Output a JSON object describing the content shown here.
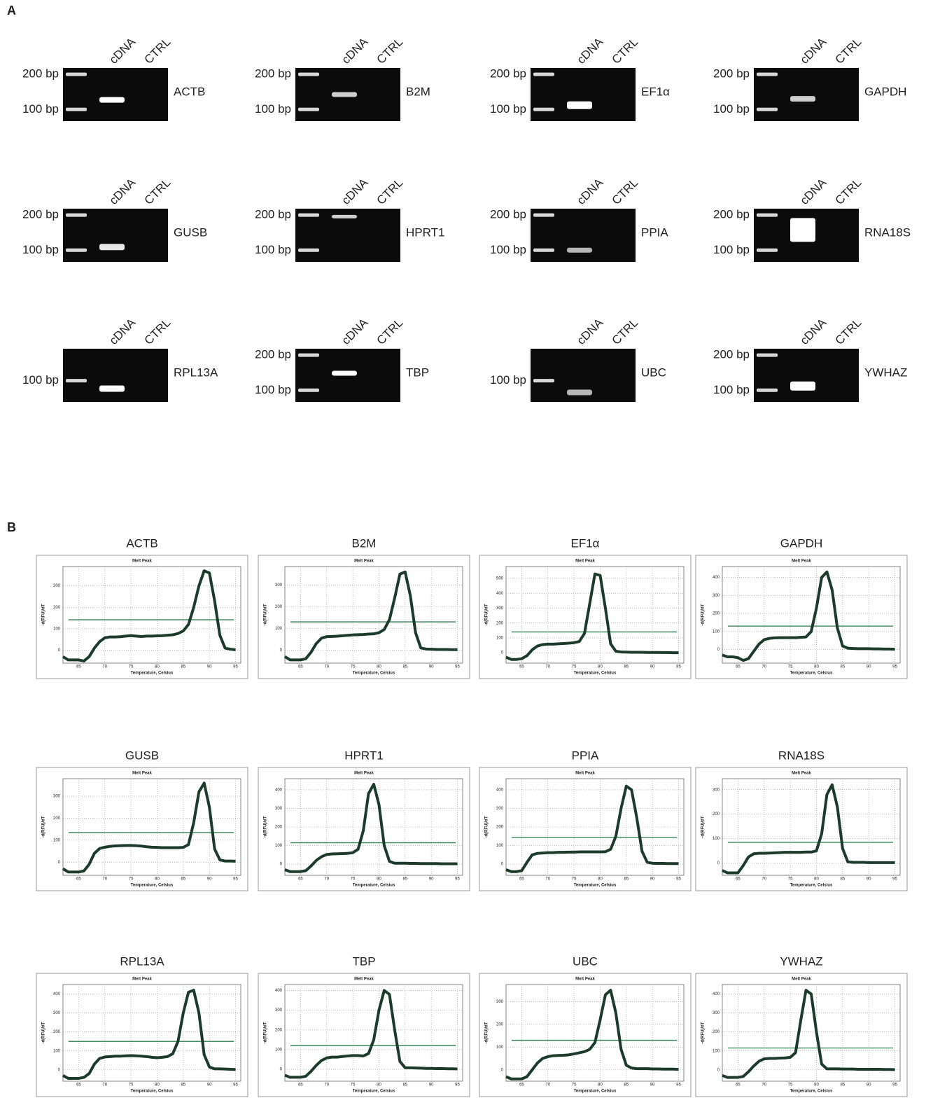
{
  "panel_labels": [
    "A",
    "B"
  ],
  "gels": [
    {
      "gene": "ACTB",
      "lanes": [
        "cDNA",
        "CTRL"
      ],
      "ladder": [
        "200 bp",
        "100 bp"
      ]
    },
    {
      "gene": "B2M",
      "lanes": [
        "cDNA",
        "CTRL"
      ],
      "ladder": [
        "200 bp",
        "100 bp"
      ]
    },
    {
      "gene": "EF1α",
      "lanes": [
        "cDNA",
        "CTRL"
      ],
      "ladder": [
        "200 bp",
        "100 bp"
      ]
    },
    {
      "gene": "GAPDH",
      "lanes": [
        "cDNA",
        "CTRL"
      ],
      "ladder": [
        "200 bp",
        "100 bp"
      ]
    },
    {
      "gene": "GUSB",
      "lanes": [
        "cDNA",
        "CTRL"
      ],
      "ladder": [
        "200 bp",
        "100 bp"
      ]
    },
    {
      "gene": "HPRT1",
      "lanes": [
        "cDNA",
        "CTRL"
      ],
      "ladder": [
        "200 bp",
        "100 bp"
      ]
    },
    {
      "gene": "PPIA",
      "lanes": [
        "cDNA",
        "CTRL"
      ],
      "ladder": [
        "200 bp",
        "100 bp"
      ]
    },
    {
      "gene": "RNA18S",
      "lanes": [
        "cDNA",
        "CTRL"
      ],
      "ladder": [
        "200 bp",
        "100 bp"
      ]
    },
    {
      "gene": "RPL13A",
      "lanes": [
        "cDNA",
        "CTRL"
      ],
      "ladder": [
        "100 bp"
      ]
    },
    {
      "gene": "TBP",
      "lanes": [
        "cDNA",
        "CTRL"
      ],
      "ladder": [
        "200 bp",
        "100 bp"
      ]
    },
    {
      "gene": "UBC",
      "lanes": [
        "cDNA",
        "CTRL"
      ],
      "ladder": [
        "100 bp"
      ]
    },
    {
      "gene": "YWHAZ",
      "lanes": [
        "cDNA",
        "CTRL"
      ],
      "ladder": [
        "200 bp",
        "100 bp"
      ]
    }
  ],
  "chart_data": [
    {
      "type": "line",
      "title": "ACTB",
      "subtitle": "Melt Peak",
      "x_label": "Temperature, Celsius",
      "y_label": "-d(RFU)/dT",
      "color": "#1c3b2a",
      "threshold": 142,
      "threshold_color": "#2e7d4f",
      "grid": true,
      "x": [
        62,
        63,
        64,
        65,
        66,
        67,
        68,
        69,
        70,
        71,
        72,
        73,
        74,
        75,
        76,
        77,
        78,
        79,
        80,
        81,
        82,
        83,
        84,
        85,
        86,
        87,
        88,
        89,
        90,
        91,
        92,
        93,
        94,
        95
      ],
      "values": [
        -30,
        -45,
        -45,
        -45,
        -50,
        -30,
        10,
        40,
        58,
        62,
        62,
        63,
        66,
        68,
        66,
        64,
        66,
        66,
        67,
        68,
        70,
        72,
        78,
        90,
        120,
        200,
        300,
        370,
        360,
        230,
        70,
        10,
        5,
        2
      ],
      "xlim": [
        62,
        96
      ],
      "xticks": [
        65,
        70,
        75,
        80,
        85,
        90,
        95
      ],
      "ylim": [
        -60,
        390
      ],
      "yticks": [
        0,
        100,
        200,
        300
      ]
    },
    {
      "type": "line",
      "title": "B2M",
      "subtitle": "Melt Peak",
      "x_label": "Temperature, Celsius",
      "y_label": "-d(RFU)/dT",
      "color": "#1c3b2a",
      "threshold": 130,
      "threshold_color": "#2e7d4f",
      "grid": true,
      "x": [
        62,
        63,
        64,
        65,
        66,
        67,
        68,
        69,
        70,
        71,
        72,
        73,
        74,
        75,
        76,
        77,
        78,
        79,
        80,
        81,
        82,
        83,
        84,
        85,
        86,
        87,
        88,
        89,
        90,
        91,
        92,
        93,
        94,
        95
      ],
      "values": [
        -30,
        -45,
        -45,
        -45,
        -40,
        -10,
        30,
        55,
        62,
        63,
        64,
        66,
        68,
        70,
        71,
        72,
        74,
        75,
        80,
        95,
        140,
        240,
        350,
        360,
        250,
        80,
        10,
        5,
        4,
        3,
        3,
        3,
        2,
        2
      ],
      "xlim": [
        62,
        96
      ],
      "xticks": [
        65,
        70,
        75,
        80,
        85,
        90,
        95
      ],
      "ylim": [
        -60,
        385
      ],
      "yticks": [
        0,
        100,
        200,
        300
      ]
    },
    {
      "type": "line",
      "title": "EF1α",
      "subtitle": "Melt Peak",
      "x_label": "Temperature, Celsius",
      "y_label": "-d(RFU)/dT",
      "color": "#1c3b2a",
      "threshold": 140,
      "threshold_color": "#2e7d4f",
      "grid": true,
      "x": [
        62,
        63,
        64,
        65,
        66,
        67,
        68,
        69,
        70,
        71,
        72,
        73,
        74,
        75,
        76,
        77,
        78,
        79,
        80,
        81,
        82,
        83,
        84,
        85,
        86,
        87,
        88,
        89,
        90,
        91,
        92,
        93,
        94,
        95
      ],
      "values": [
        -30,
        -45,
        -45,
        -40,
        -20,
        20,
        45,
        55,
        58,
        58,
        60,
        62,
        64,
        68,
        75,
        130,
        330,
        530,
        520,
        300,
        60,
        10,
        5,
        4,
        3,
        3,
        3,
        2,
        2,
        2,
        1,
        1,
        0,
        0
      ],
      "xlim": [
        62,
        96
      ],
      "xticks": [
        65,
        70,
        75,
        80,
        85,
        90,
        95
      ],
      "ylim": [
        -70,
        580
      ],
      "yticks": [
        0,
        100,
        200,
        300,
        400,
        500
      ]
    },
    {
      "type": "line",
      "title": "GAPDH",
      "subtitle": "Melt Peak",
      "x_label": "Temperature, Celsius",
      "y_label": "-d(RFU)/dT",
      "color": "#1c3b2a",
      "threshold": 130,
      "threshold_color": "#2e7d4f",
      "grid": true,
      "x": [
        62,
        63,
        64,
        65,
        66,
        67,
        68,
        69,
        70,
        71,
        72,
        73,
        74,
        75,
        76,
        77,
        78,
        79,
        80,
        81,
        82,
        83,
        84,
        85,
        86,
        87,
        88,
        89,
        90,
        91,
        92,
        93,
        94,
        95
      ],
      "values": [
        -30,
        -40,
        -40,
        -45,
        -60,
        -50,
        -10,
        30,
        55,
        62,
        65,
        66,
        66,
        66,
        66,
        68,
        70,
        100,
        230,
        400,
        430,
        330,
        120,
        20,
        8,
        6,
        5,
        5,
        5,
        4,
        4,
        3,
        3,
        2
      ],
      "xlim": [
        62,
        96
      ],
      "xticks": [
        65,
        70,
        75,
        80,
        85,
        90,
        95
      ],
      "ylim": [
        -75,
        460
      ],
      "yticks": [
        0,
        100,
        200,
        300,
        400
      ]
    },
    {
      "type": "line",
      "title": "GUSB",
      "subtitle": "Melt Peak",
      "x_label": "Temperature, Celsius",
      "y_label": "-d(RFU)/dT",
      "color": "#1c3b2a",
      "threshold": 135,
      "threshold_color": "#2e7d4f",
      "grid": true,
      "x": [
        62,
        63,
        64,
        65,
        66,
        67,
        68,
        69,
        70,
        71,
        72,
        73,
        74,
        75,
        76,
        77,
        78,
        79,
        80,
        81,
        82,
        83,
        84,
        85,
        86,
        87,
        88,
        89,
        90,
        91,
        92,
        93,
        94,
        95
      ],
      "values": [
        -30,
        -45,
        -45,
        -45,
        -40,
        -10,
        40,
        62,
        68,
        72,
        74,
        75,
        76,
        76,
        75,
        73,
        70,
        68,
        67,
        66,
        66,
        66,
        66,
        67,
        80,
        180,
        320,
        360,
        250,
        60,
        10,
        5,
        5,
        4
      ],
      "xlim": [
        62,
        96
      ],
      "xticks": [
        65,
        70,
        75,
        80,
        85,
        90,
        95
      ],
      "ylim": [
        -60,
        380
      ],
      "yticks": [
        0,
        100,
        200,
        300
      ]
    },
    {
      "type": "line",
      "title": "HPRT1",
      "subtitle": "Melt Peak",
      "x_label": "Temperature, Celsius",
      "y_label": "-d(RFU)/dT",
      "color": "#1c3b2a",
      "threshold": 115,
      "threshold_color": "#2e7d4f",
      "grid": true,
      "x": [
        62,
        63,
        64,
        65,
        66,
        67,
        68,
        69,
        70,
        71,
        72,
        73,
        74,
        75,
        76,
        77,
        78,
        79,
        80,
        81,
        82,
        83,
        84,
        85,
        86,
        87,
        88,
        89,
        90,
        91,
        92,
        93,
        94,
        95
      ],
      "values": [
        -30,
        -40,
        -40,
        -40,
        -35,
        -10,
        20,
        40,
        52,
        55,
        56,
        57,
        58,
        62,
        80,
        180,
        380,
        430,
        320,
        100,
        15,
        5,
        5,
        5,
        4,
        4,
        3,
        3,
        3,
        3,
        2,
        2,
        2,
        2
      ],
      "xlim": [
        62,
        96
      ],
      "xticks": [
        65,
        70,
        75,
        80,
        85,
        90,
        95
      ],
      "ylim": [
        -60,
        460
      ],
      "yticks": [
        0,
        100,
        200,
        300,
        400
      ]
    },
    {
      "type": "line",
      "title": "PPIA",
      "subtitle": "Melt Peak",
      "x_label": "Temperature, Celsius",
      "y_label": "-d(RFU)/dT",
      "color": "#1c3b2a",
      "threshold": 145,
      "threshold_color": "#2e7d4f",
      "grid": true,
      "x": [
        62,
        63,
        64,
        65,
        66,
        67,
        68,
        69,
        70,
        71,
        72,
        73,
        74,
        75,
        76,
        77,
        78,
        79,
        80,
        81,
        82,
        83,
        84,
        85,
        86,
        87,
        88,
        89,
        90,
        91,
        92,
        93,
        94,
        95
      ],
      "values": [
        -30,
        -40,
        -40,
        -35,
        10,
        50,
        58,
        60,
        62,
        62,
        64,
        64,
        65,
        65,
        66,
        66,
        66,
        66,
        66,
        67,
        80,
        150,
        300,
        420,
        400,
        250,
        70,
        10,
        5,
        4,
        4,
        3,
        3,
        3
      ],
      "xlim": [
        62,
        96
      ],
      "xticks": [
        65,
        70,
        75,
        80,
        85,
        90,
        95
      ],
      "ylim": [
        -60,
        460
      ],
      "yticks": [
        0,
        100,
        200,
        300,
        400
      ]
    },
    {
      "type": "line",
      "title": "RNA18S",
      "subtitle": "Melt Peak",
      "x_label": "Temperature, Celsius",
      "y_label": "-d(RFU)/dT",
      "color": "#1c3b2a",
      "threshold": 85,
      "threshold_color": "#2e7d4f",
      "grid": true,
      "x": [
        62,
        63,
        64,
        65,
        66,
        67,
        68,
        69,
        70,
        71,
        72,
        73,
        74,
        75,
        76,
        77,
        78,
        79,
        80,
        81,
        82,
        83,
        84,
        85,
        86,
        87,
        88,
        89,
        90,
        91,
        92,
        93,
        94,
        95
      ],
      "values": [
        -30,
        -40,
        -40,
        -40,
        -10,
        25,
        38,
        40,
        40,
        41,
        42,
        43,
        44,
        44,
        44,
        44,
        45,
        45,
        50,
        120,
        280,
        320,
        230,
        60,
        5,
        3,
        3,
        3,
        2,
        2,
        2,
        2,
        2,
        2
      ],
      "xlim": [
        62,
        96
      ],
      "xticks": [
        65,
        70,
        75,
        80,
        85,
        90,
        95
      ],
      "ylim": [
        -50,
        345
      ],
      "yticks": [
        0,
        100,
        200,
        300
      ]
    },
    {
      "type": "line",
      "title": "RPL13A",
      "subtitle": "Melt Peak",
      "x_label": "Temperature, Celsius",
      "y_label": "-d(RFU)/dT",
      "color": "#1c3b2a",
      "threshold": 150,
      "threshold_color": "#2e7d4f",
      "grid": true,
      "x": [
        62,
        63,
        64,
        65,
        66,
        67,
        68,
        69,
        70,
        71,
        72,
        73,
        74,
        75,
        76,
        77,
        78,
        79,
        80,
        81,
        82,
        83,
        84,
        85,
        86,
        87,
        88,
        89,
        90,
        91,
        92,
        93,
        94,
        95
      ],
      "values": [
        -30,
        -45,
        -45,
        -45,
        -40,
        -20,
        30,
        60,
        68,
        70,
        72,
        72,
        74,
        75,
        74,
        72,
        70,
        66,
        64,
        66,
        70,
        85,
        150,
        300,
        410,
        420,
        300,
        80,
        15,
        5,
        5,
        4,
        3,
        2
      ],
      "xlim": [
        62,
        96
      ],
      "xticks": [
        65,
        70,
        75,
        80,
        85,
        90,
        95
      ],
      "ylim": [
        -60,
        450
      ],
      "yticks": [
        0,
        100,
        200,
        300,
        400
      ]
    },
    {
      "type": "line",
      "title": "TBP",
      "subtitle": "Melt Peak",
      "x_label": "Temperature, Celsius",
      "y_label": "-d(RFU)/dT",
      "color": "#1c3b2a",
      "threshold": 120,
      "threshold_color": "#2e7d4f",
      "grid": true,
      "x": [
        62,
        63,
        64,
        65,
        66,
        67,
        68,
        69,
        70,
        71,
        72,
        73,
        74,
        75,
        76,
        77,
        78,
        79,
        80,
        81,
        82,
        83,
        84,
        85,
        86,
        87,
        88,
        89,
        90,
        91,
        92,
        93,
        94,
        95
      ],
      "values": [
        -30,
        -40,
        -40,
        -40,
        -35,
        -10,
        20,
        45,
        58,
        62,
        62,
        65,
        68,
        70,
        70,
        68,
        80,
        150,
        300,
        400,
        380,
        200,
        40,
        8,
        8,
        7,
        6,
        5,
        5,
        4,
        4,
        3,
        3,
        2
      ],
      "xlim": [
        62,
        96
      ],
      "xticks": [
        65,
        70,
        75,
        80,
        85,
        90,
        95
      ],
      "ylim": [
        -60,
        430
      ],
      "yticks": [
        0,
        100,
        200,
        300,
        400
      ]
    },
    {
      "type": "line",
      "title": "UBC",
      "subtitle": "Melt Peak",
      "x_label": "Temperature, Celsius",
      "y_label": "-d(RFU)/dT",
      "color": "#1c3b2a",
      "threshold": 130,
      "threshold_color": "#2e7d4f",
      "grid": true,
      "x": [
        62,
        63,
        64,
        65,
        66,
        67,
        68,
        69,
        70,
        71,
        72,
        73,
        74,
        75,
        76,
        77,
        78,
        79,
        80,
        81,
        82,
        83,
        84,
        85,
        86,
        87,
        88,
        89,
        90,
        91,
        92,
        93,
        94,
        95
      ],
      "values": [
        -30,
        -40,
        -40,
        -40,
        -30,
        0,
        30,
        50,
        58,
        62,
        63,
        64,
        66,
        70,
        75,
        80,
        90,
        120,
        220,
        330,
        350,
        250,
        90,
        20,
        8,
        5,
        5,
        5,
        4,
        4,
        3,
        3,
        3,
        2
      ],
      "xlim": [
        62,
        96
      ],
      "xticks": [
        65,
        70,
        75,
        80,
        85,
        90,
        95
      ],
      "ylim": [
        -50,
        375
      ],
      "yticks": [
        0,
        100,
        200,
        300
      ]
    },
    {
      "type": "line",
      "title": "YWHAZ",
      "subtitle": "Melt Peak",
      "x_label": "Temperature, Celsius",
      "y_label": "-d(RFU)/dT",
      "color": "#1c3b2a",
      "threshold": 115,
      "threshold_color": "#2e7d4f",
      "grid": true,
      "x": [
        62,
        63,
        64,
        65,
        66,
        67,
        68,
        69,
        70,
        71,
        72,
        73,
        74,
        75,
        76,
        77,
        78,
        79,
        80,
        81,
        82,
        83,
        84,
        85,
        86,
        87,
        88,
        89,
        90,
        91,
        92,
        93,
        94,
        95
      ],
      "values": [
        -30,
        -40,
        -40,
        -40,
        -35,
        -10,
        20,
        45,
        58,
        60,
        60,
        62,
        63,
        66,
        90,
        260,
        420,
        400,
        200,
        30,
        5,
        5,
        5,
        4,
        4,
        4,
        3,
        3,
        3,
        3,
        3,
        2,
        2,
        1
      ],
      "xlim": [
        62,
        96
      ],
      "xticks": [
        65,
        70,
        75,
        80,
        85,
        90,
        95
      ],
      "ylim": [
        -60,
        450
      ],
      "yticks": [
        0,
        100,
        200,
        300,
        400
      ]
    }
  ]
}
